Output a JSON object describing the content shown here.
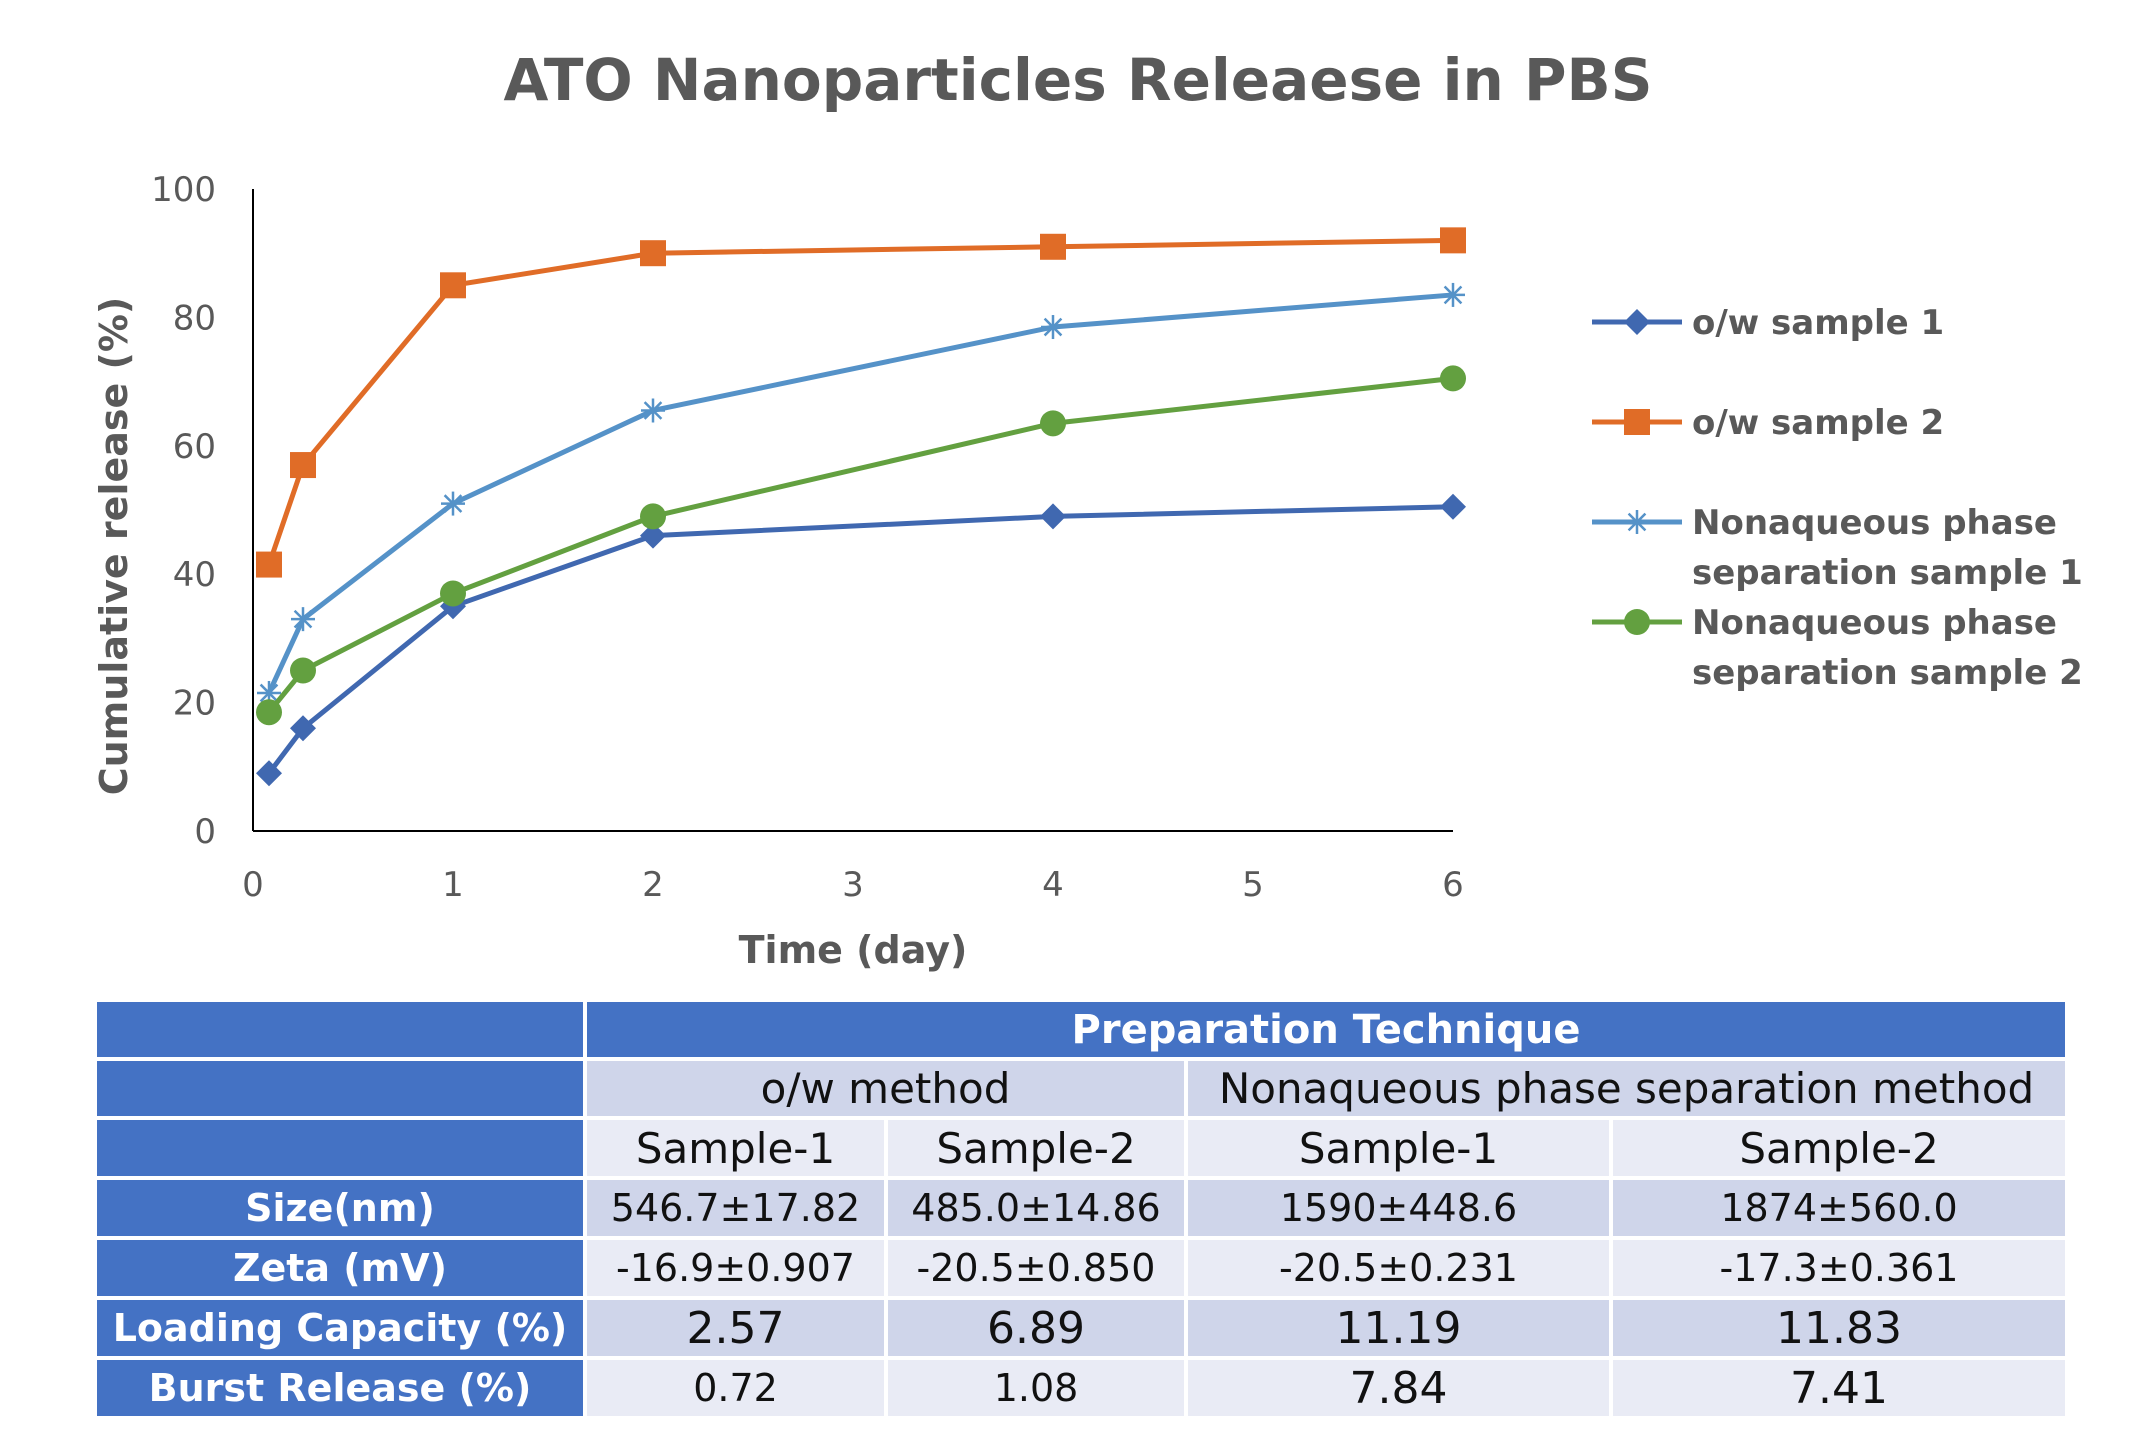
{
  "chart_data": {
    "type": "line",
    "title": "ATO Nanoparticles Releaese in PBS",
    "xlabel": "Time (day)",
    "ylabel": "Cumulative release (%)",
    "xlim": [
      0,
      6
    ],
    "ylim": [
      0,
      100
    ],
    "xticks": [
      0,
      1,
      2,
      3,
      4,
      5,
      6
    ],
    "yticks": [
      0,
      20,
      40,
      60,
      80,
      100
    ],
    "grid": false,
    "legend_position": "right",
    "series": [
      {
        "name": "o/w sample 1",
        "color": "#4068b0",
        "marker": "diamond",
        "x": [
          0.08,
          0.25,
          1,
          2,
          4,
          6
        ],
        "y": [
          9,
          16,
          35,
          46,
          49,
          50.5
        ]
      },
      {
        "name": "o/w sample 2",
        "color": "#e06c27",
        "marker": "square",
        "x": [
          0.08,
          0.25,
          1,
          2,
          4,
          6
        ],
        "y": [
          41.5,
          57,
          85,
          90,
          91,
          92
        ]
      },
      {
        "name": "Nonaqueous phase separation sample 1",
        "color": "#5592c8",
        "marker": "star",
        "x": [
          0.08,
          0.25,
          1,
          2,
          4,
          6
        ],
        "y": [
          21.5,
          33,
          51,
          65.5,
          78.5,
          83.5
        ]
      },
      {
        "name": "Nonaqueous phase separation sample 2",
        "color": "#63a040",
        "marker": "circle",
        "x": [
          0.08,
          0.25,
          1,
          2,
          4,
          6
        ],
        "y": [
          18.5,
          25,
          37,
          49,
          63.5,
          70.5
        ]
      }
    ]
  },
  "legend_lines": [
    [
      "o/w sample 1"
    ],
    [
      "o/w sample 2"
    ],
    [
      "Nonaqueous phase",
      "separation sample 1"
    ],
    [
      "Nonaqueous phase",
      "separation sample 2"
    ]
  ],
  "table": {
    "header": "Preparation Technique",
    "methods": [
      "o/w method",
      "Nonaqueous phase separation method"
    ],
    "samples": [
      "Sample-1",
      "Sample-2",
      "Sample-1",
      "Sample-2"
    ],
    "rows": [
      {
        "label": "Size(nm)",
        "values": [
          "546.7±17.82",
          "485.0±14.86",
          "1590±448.6",
          "1874±560.0"
        ]
      },
      {
        "label": "Zeta (mV)",
        "values": [
          "-16.9±0.907",
          "-20.5±0.850",
          "-20.5±0.231",
          "-17.3±0.361"
        ]
      },
      {
        "label": "Loading Capacity (%)",
        "values": [
          "2.57",
          "6.89",
          "11.19",
          "11.83"
        ]
      },
      {
        "label": "Burst Release (%)",
        "values": [
          "0.72",
          "1.08",
          "7.84",
          "7.41"
        ]
      }
    ]
  }
}
